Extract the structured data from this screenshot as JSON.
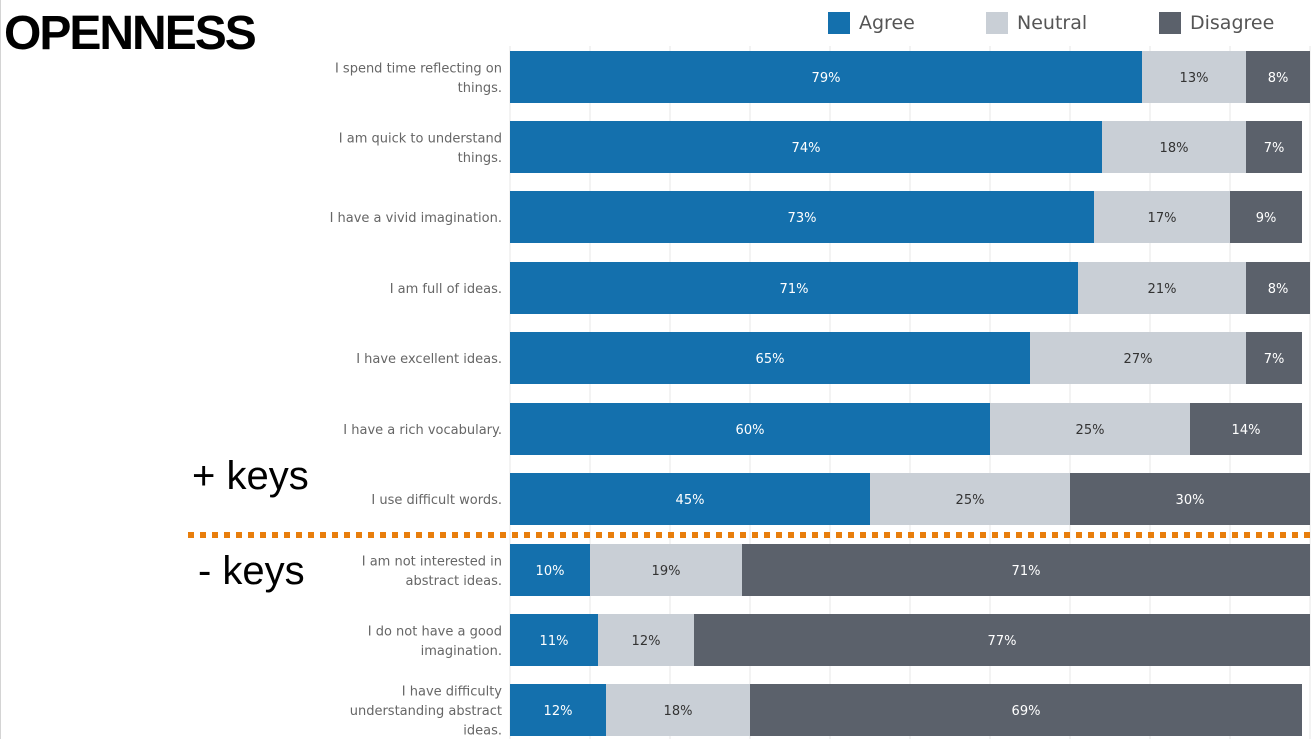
{
  "title": "OPENNESS",
  "key_labels": {
    "positive": "+ keys",
    "negative": "- keys"
  },
  "legend": [
    {
      "label": "Agree",
      "color": "#1470ad"
    },
    {
      "label": "Neutral",
      "color": "#c9cfd6"
    },
    {
      "label": "Disagree",
      "color": "#5b616b"
    }
  ],
  "colors": {
    "agree": "#1470ad",
    "neutral": "#c9cfd6",
    "disagree": "#5b616b",
    "divider": "#e87e0c",
    "grid": "#e7e7e7",
    "label_text": "#666666"
  },
  "chart_data": {
    "type": "bar",
    "orientation": "horizontal",
    "stacked": true,
    "title": "OPENNESS",
    "xlim": [
      0,
      100
    ],
    "grid": true,
    "legend_position": "top-right",
    "categories": [
      [
        "I spend time reflecting on",
        "things."
      ],
      [
        "I am quick to understand",
        "things."
      ],
      [
        "I have a vivid imagination."
      ],
      [
        "I am full of ideas."
      ],
      [
        "I have excellent ideas."
      ],
      [
        "I have a rich vocabulary."
      ],
      [
        "I use difficult words."
      ],
      [
        "I am not interested in",
        "abstract ideas."
      ],
      [
        "I do not have a good",
        "imagination."
      ],
      [
        "I have difficulty",
        "understanding abstract",
        "ideas."
      ]
    ],
    "series": [
      {
        "name": "Agree",
        "values": [
          79,
          74,
          73,
          71,
          65,
          60,
          45,
          10,
          11,
          12
        ]
      },
      {
        "name": "Neutral",
        "values": [
          13,
          18,
          17,
          21,
          27,
          25,
          25,
          19,
          12,
          18
        ]
      },
      {
        "name": "Disagree",
        "values": [
          8,
          7,
          9,
          8,
          7,
          14,
          30,
          71,
          77,
          69
        ]
      }
    ],
    "data_labels": [
      [
        "79%",
        "13%",
        "8%"
      ],
      [
        "74%",
        "18%",
        "7%"
      ],
      [
        "73%",
        "17%",
        "9%"
      ],
      [
        "71%",
        "21%",
        "8%"
      ],
      [
        "65%",
        "27%",
        "7%"
      ],
      [
        "60%",
        "25%",
        "14%"
      ],
      [
        "45%",
        "25%",
        "30%"
      ],
      [
        "10%",
        "19%",
        "71%"
      ],
      [
        "11%",
        "12%",
        "77%"
      ],
      [
        "12%",
        "18%",
        "69%"
      ]
    ],
    "groups": [
      {
        "name": "+ keys",
        "rows": [
          0,
          1,
          2,
          3,
          4,
          5,
          6
        ]
      },
      {
        "name": "- keys",
        "rows": [
          7,
          8,
          9
        ]
      }
    ]
  }
}
